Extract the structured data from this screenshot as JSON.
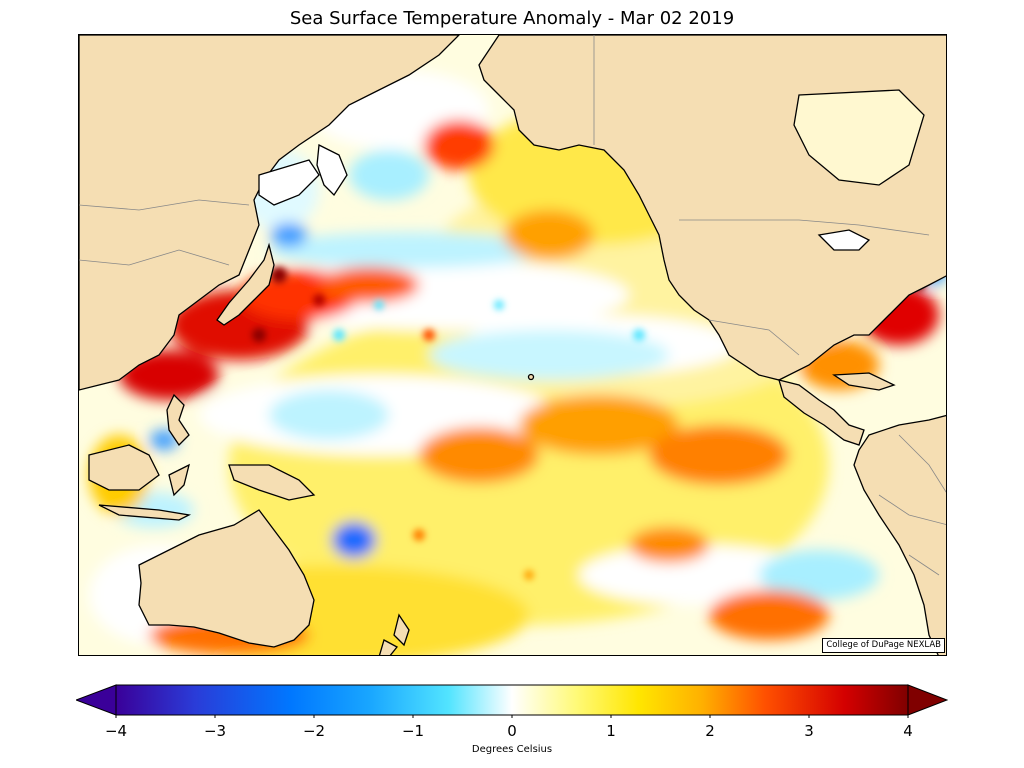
{
  "title": "Sea Surface Temperature Anomaly - Mar 02 2019",
  "credit": "College of DuPage NEXLAB",
  "colorbar": {
    "label": "Degrees Celsius",
    "min": -4,
    "max": 4,
    "ticks": [
      "−4",
      "−3",
      "−2",
      "−1",
      "0",
      "1",
      "2",
      "3",
      "4"
    ],
    "extend": "both"
  },
  "colors": {
    "land": "#f5deb3",
    "ocean_neutral": "#ffffff",
    "cold_extreme": "#3d00a0",
    "cold": "#0050ff",
    "cool": "#5ae6ff",
    "warm": "#ffe600",
    "hot": "#ff5000",
    "hot_extreme": "#8b0000"
  },
  "colorbar_stops": [
    "#3a0099",
    "#2a3cd8",
    "#0077ff",
    "#19a6ff",
    "#52e4ff",
    "#ffffff",
    "#fffa7a",
    "#ffe600",
    "#ffb000",
    "#ff5000",
    "#d40000",
    "#800000"
  ]
}
